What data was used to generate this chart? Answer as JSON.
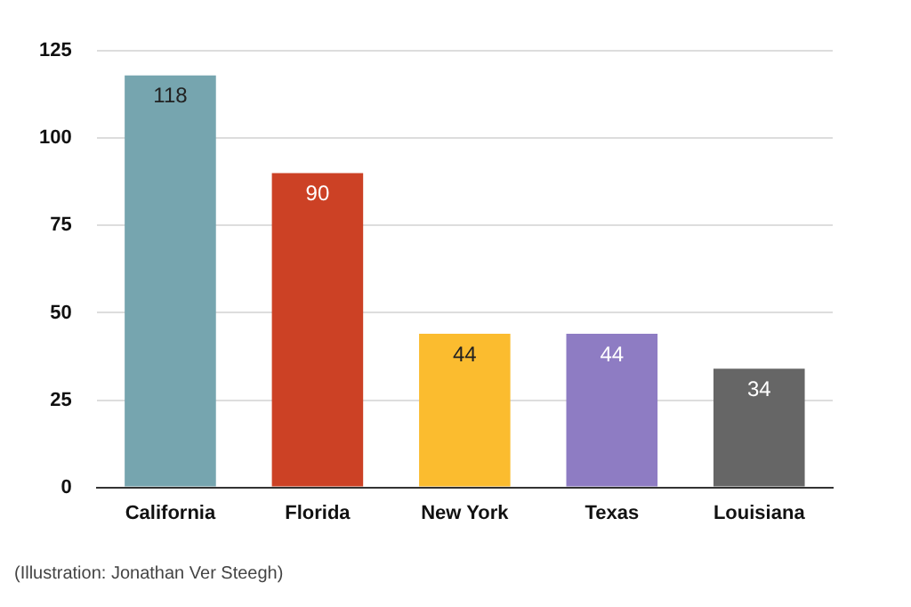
{
  "chart_data": {
    "type": "bar",
    "categories": [
      "California",
      "Florida",
      "New York",
      "Texas",
      "Louisiana"
    ],
    "values": [
      118,
      90,
      44,
      44,
      34
    ],
    "colors": [
      "#76a5af",
      "#cc4125",
      "#fbbc2f",
      "#8e7cc3",
      "#666666"
    ],
    "ylim": [
      0,
      125
    ],
    "yticks": [
      0,
      25,
      50,
      75,
      100,
      125
    ],
    "grid": "y",
    "data_labels": true,
    "legend": false,
    "annotations": [
      "(Illustration: Jonathan Ver Steegh)"
    ]
  }
}
